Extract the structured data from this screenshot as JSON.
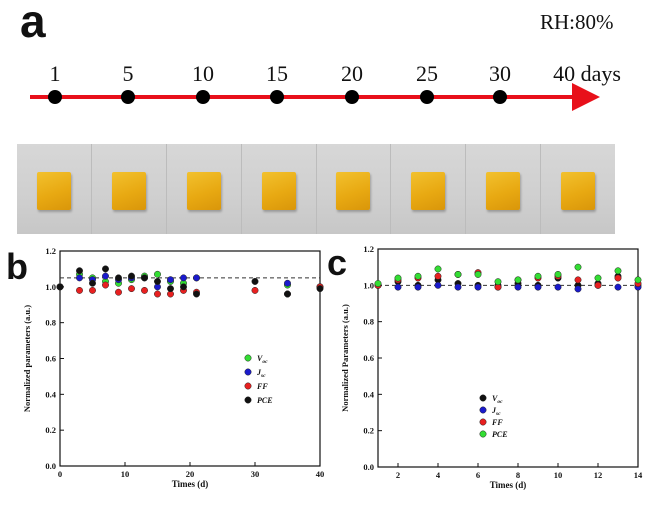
{
  "header": {
    "panel_a": "a",
    "panel_b": "b",
    "panel_c": "c",
    "humidity": "RH:80%"
  },
  "timeline": {
    "points": [
      {
        "label": "1",
        "day": 1
      },
      {
        "label": "5",
        "day": 5
      },
      {
        "label": "10",
        "day": 10
      },
      {
        "label": "15",
        "day": 15
      },
      {
        "label": "20",
        "day": 20
      },
      {
        "label": "25",
        "day": 25
      },
      {
        "label": "30",
        "day": 30
      },
      {
        "label": "40 days",
        "day": 40
      }
    ],
    "line_color": "#e8101a",
    "dot_color": "#000000"
  },
  "photos": {
    "count": 8,
    "film_color": "#eab31c"
  },
  "chart_data": [
    {
      "type": "scatter",
      "xlabel": "Times (d)",
      "ylabel": "Normalized  parameters (a.u.)",
      "xlim": [
        0,
        40
      ],
      "ylim": [
        0.0,
        1.2
      ],
      "xticks": [
        0,
        10,
        20,
        30,
        40
      ],
      "yticks": [
        0.0,
        0.2,
        0.4,
        0.6,
        0.8,
        1.0,
        1.2
      ],
      "reference_line": 1.05,
      "legend_position": "center-right",
      "series": [
        {
          "name": "V",
          "subscript": "oc",
          "color": "#33dd33",
          "x": [
            0,
            3,
            5,
            7,
            9,
            11,
            13,
            15,
            17,
            19,
            21,
            35,
            40
          ],
          "y": [
            1.0,
            1.07,
            1.05,
            1.03,
            1.02,
            1.04,
            1.06,
            1.07,
            1.03,
            1.02,
            1.05,
            1.01,
            1.0
          ]
        },
        {
          "name": "J",
          "subscript": "sc",
          "color": "#1a1acc",
          "x": [
            0,
            3,
            5,
            7,
            9,
            11,
            13,
            15,
            17,
            19,
            21,
            35,
            40
          ],
          "y": [
            1.0,
            1.05,
            1.04,
            1.06,
            1.04,
            1.05,
            1.05,
            1.0,
            1.04,
            1.05,
            1.05,
            1.02,
            1.0
          ]
        },
        {
          "name": "FF",
          "subscript": "",
          "color": "#e82020",
          "x": [
            0,
            3,
            5,
            7,
            9,
            11,
            13,
            15,
            17,
            19,
            21,
            30,
            35,
            40
          ],
          "y": [
            1.0,
            0.98,
            0.98,
            1.01,
            0.97,
            0.99,
            0.98,
            0.96,
            0.96,
            0.98,
            0.97,
            0.98,
            0.96,
            1.0
          ]
        },
        {
          "name": "PCE",
          "subscript": "",
          "color": "#111111",
          "x": [
            0,
            3,
            5,
            7,
            9,
            11,
            13,
            15,
            17,
            19,
            21,
            30,
            35,
            40
          ],
          "y": [
            1.0,
            1.09,
            1.02,
            1.1,
            1.05,
            1.06,
            1.05,
            1.03,
            0.99,
            1.0,
            0.96,
            1.03,
            0.96,
            0.99
          ]
        }
      ]
    },
    {
      "type": "scatter",
      "xlabel": "Times (d)",
      "ylabel": "Normalized Parameters (a.u.)",
      "xlim": [
        1,
        14
      ],
      "ylim": [
        0.0,
        1.2
      ],
      "xticks": [
        2,
        4,
        6,
        8,
        10,
        12,
        14
      ],
      "yticks": [
        0.0,
        0.2,
        0.4,
        0.6,
        0.8,
        1.0,
        1.2
      ],
      "reference_line": 1.0,
      "legend_position": "bottom-center",
      "series": [
        {
          "name": "V",
          "subscript": "oc",
          "color": "#111111",
          "x": [
            1,
            2,
            3,
            4,
            5,
            6,
            7,
            8,
            9,
            10,
            11,
            12,
            13,
            14
          ],
          "y": [
            1.0,
            1.02,
            1.0,
            1.03,
            1.01,
            1.0,
            1.0,
            1.01,
            1.0,
            1.04,
            1.0,
            1.01,
            1.05,
            1.0
          ]
        },
        {
          "name": "J",
          "subscript": "sc",
          "color": "#1a1acc",
          "x": [
            1,
            2,
            3,
            4,
            5,
            6,
            7,
            8,
            9,
            10,
            11,
            12,
            13,
            14
          ],
          "y": [
            1.0,
            0.99,
            0.99,
            1.0,
            0.99,
            0.99,
            0.99,
            0.99,
            0.99,
            0.99,
            0.98,
            1.0,
            0.99,
            0.99
          ]
        },
        {
          "name": "FF",
          "subscript": "",
          "color": "#e82020",
          "x": [
            1,
            2,
            3,
            4,
            5,
            6,
            7,
            8,
            9,
            10,
            11,
            12,
            13,
            14
          ],
          "y": [
            1.0,
            1.03,
            1.04,
            1.05,
            1.06,
            1.07,
            0.99,
            1.03,
            1.04,
            1.05,
            1.03,
            1.0,
            1.04,
            1.01
          ]
        },
        {
          "name": "PCE",
          "subscript": "",
          "color": "#33dd33",
          "x": [
            1,
            2,
            3,
            4,
            5,
            6,
            7,
            8,
            9,
            10,
            11,
            12,
            13,
            14
          ],
          "y": [
            1.01,
            1.04,
            1.05,
            1.09,
            1.06,
            1.06,
            1.02,
            1.03,
            1.05,
            1.06,
            1.1,
            1.04,
            1.08,
            1.03
          ]
        }
      ]
    }
  ]
}
